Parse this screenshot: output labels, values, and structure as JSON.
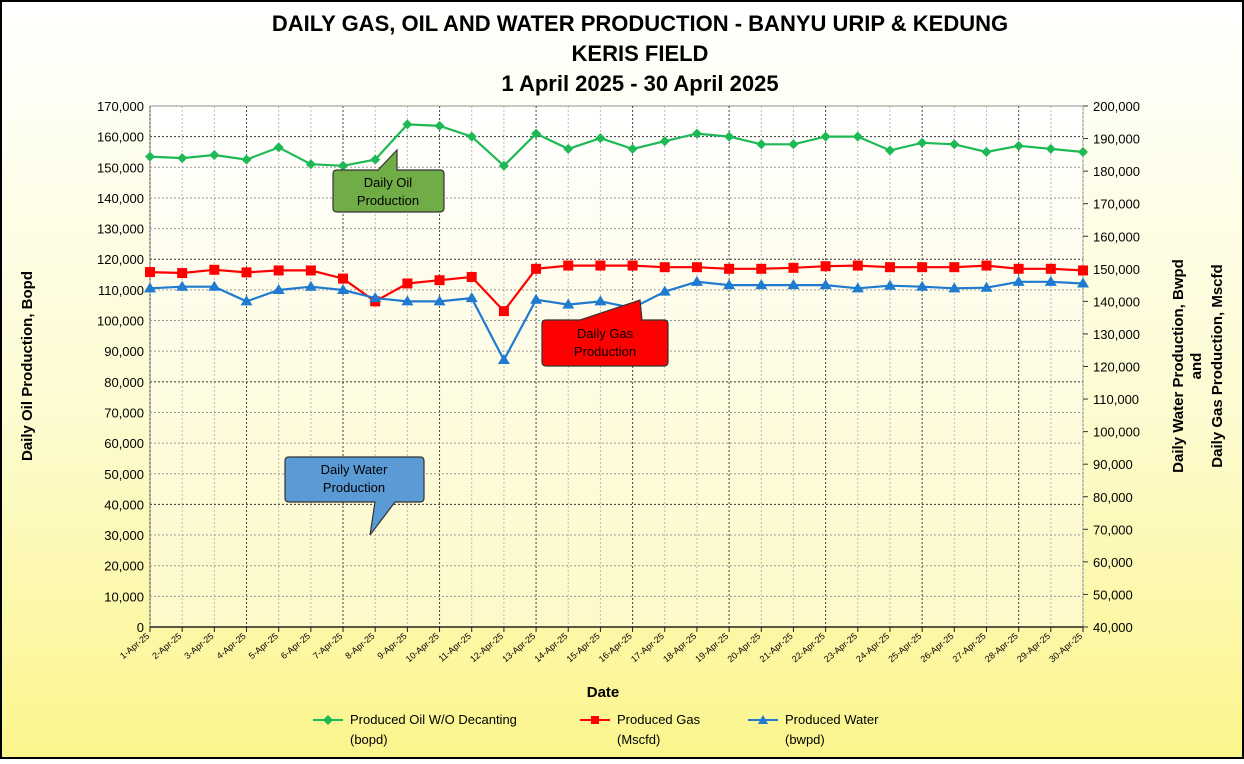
{
  "chart_data": {
    "type": "line",
    "title": [
      "DAILY  GAS, OIL AND WATER PRODUCTION  - BANYU URIP & KEDUNG",
      "KERIS FIELD",
      "1 April 2025 - 30 April 2025"
    ],
    "xlabel": "Date",
    "ylabel_left": "Daily Oil Production, Bopd",
    "ylabel_right": [
      "Daily Water Production, Bwpd",
      "and",
      "Daily Gas Production, Mscfd"
    ],
    "ylim_left": [
      0,
      170000
    ],
    "ylim_right": [
      40000,
      200000
    ],
    "yticks_left": [
      "0",
      "10,000",
      "20,000",
      "30,000",
      "40,000",
      "50,000",
      "60,000",
      "70,000",
      "80,000",
      "90,000",
      "100,000",
      "110,000",
      "120,000",
      "130,000",
      "140,000",
      "150,000",
      "160,000",
      "170,000"
    ],
    "yticks_right": [
      "40,000",
      "50,000",
      "60,000",
      "70,000",
      "80,000",
      "90,000",
      "100,000",
      "110,000",
      "120,000",
      "130,000",
      "140,000",
      "150,000",
      "160,000",
      "170,000",
      "180,000",
      "190,000",
      "200,000"
    ],
    "grid": true,
    "legend_position": "bottom",
    "categories": [
      "1-Apr-25",
      "2-Apr-25",
      "3-Apr-25",
      "4-Apr-25",
      "5-Apr-25",
      "6-Apr-25",
      "7-Apr-25",
      "8-Apr-25",
      "9-Apr-25",
      "10-Apr-25",
      "11-Apr-25",
      "12-Apr-25",
      "13-Apr-25",
      "14-Apr-25",
      "15-Apr-25",
      "16-Apr-25",
      "17-Apr-25",
      "18-Apr-25",
      "19-Apr-25",
      "20-Apr-25",
      "21-Apr-25",
      "22-Apr-25",
      "23-Apr-25",
      "24-Apr-25",
      "25-Apr-25",
      "26-Apr-25",
      "27-Apr-25",
      "28-Apr-25",
      "29-Apr-25",
      "30-Apr-25"
    ],
    "series": [
      {
        "name": "Produced Oil W/O Decanting",
        "unit": "(bopd)",
        "axis": "left",
        "color": "#1db954",
        "marker": "diamond",
        "values": [
          153500,
          153000,
          154000,
          152500,
          156500,
          151000,
          150500,
          152500,
          164000,
          163500,
          160000,
          150500,
          161000,
          156000,
          159500,
          156000,
          158500,
          161000,
          160000,
          157500,
          157500,
          160000,
          160000,
          155500,
          158000,
          157500,
          155000,
          157000,
          156000,
          155000
        ]
      },
      {
        "name": "Produced Gas",
        "unit": "(Mscfd)",
        "axis": "right",
        "color": "#ff0000",
        "marker": "square",
        "values": [
          149000,
          148700,
          149700,
          148900,
          149500,
          149500,
          147000,
          140000,
          145500,
          146500,
          147500,
          137000,
          150000,
          151000,
          151000,
          151000,
          150500,
          150500,
          150000,
          150000,
          150300,
          150800,
          151000,
          150500,
          150500,
          150500,
          151000,
          150000,
          150000,
          149500
        ]
      },
      {
        "name": "Produced Water",
        "unit": "(bwpd)",
        "axis": "right",
        "color": "#1f7bd0",
        "marker": "triangle",
        "values": [
          144000,
          144500,
          144500,
          140000,
          143500,
          144500,
          143500,
          141000,
          140000,
          140000,
          141000,
          122000,
          140500,
          139000,
          140000,
          138000,
          143000,
          146000,
          145000,
          145000,
          145000,
          145000,
          144000,
          144800,
          144500,
          144000,
          144200,
          146000,
          146000,
          145500
        ]
      }
    ],
    "annotations": [
      {
        "text": [
          "Daily Oil",
          "Production"
        ],
        "color": "#70ad47"
      },
      {
        "text": [
          "Daily Gas",
          "Production"
        ],
        "color": "#ff0000"
      },
      {
        "text": [
          "Daily Water",
          "Production"
        ],
        "color": "#5b9bd5"
      }
    ]
  }
}
